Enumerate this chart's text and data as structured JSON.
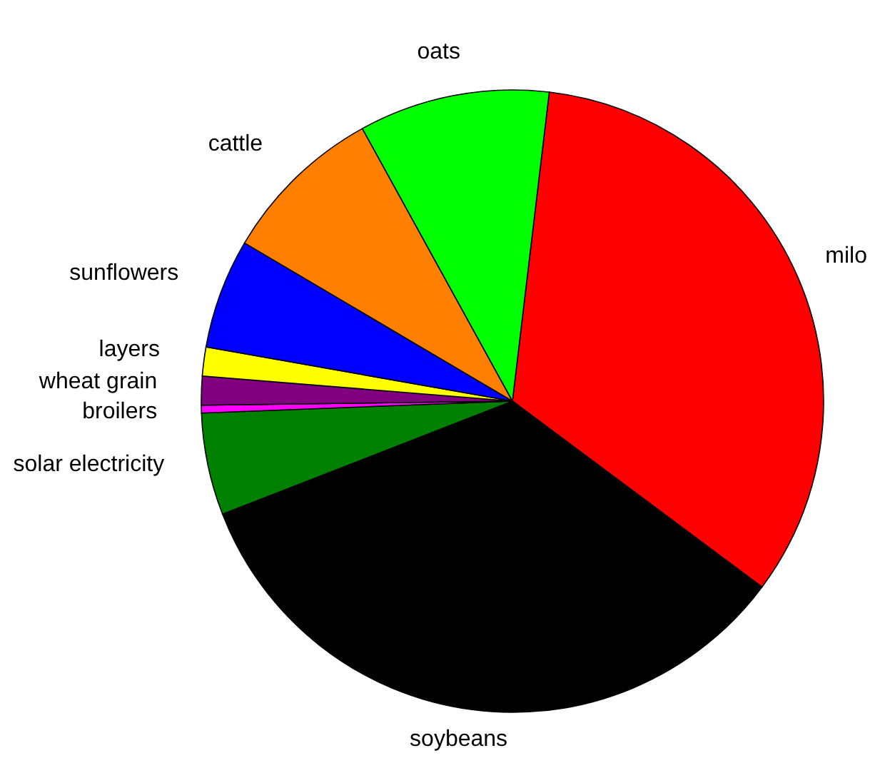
{
  "chart_data": {
    "type": "pie",
    "categories": [
      "milo",
      "soybeans",
      "solar electricity",
      "broilers",
      "wheat grain",
      "layers",
      "sunflowers",
      "cattle",
      "oats"
    ],
    "values": [
      33.3,
      33.9,
      5.3,
      0.4,
      1.5,
      1.5,
      5.7,
      8.5,
      9.9
    ],
    "colors": [
      "#ff0000",
      "#000000",
      "#008000",
      "#ff00ff",
      "#800080",
      "#ffff00",
      "#0000ff",
      "#ff8000",
      "#00ff00"
    ],
    "legend": false
  }
}
